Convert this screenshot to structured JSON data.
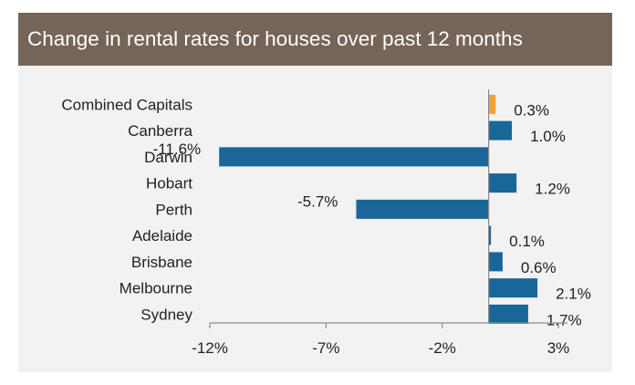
{
  "chart_data": {
    "type": "bar",
    "orientation": "horizontal",
    "title": "Change in rental rates for houses over past 12 months",
    "categories": [
      "Combined Capitals",
      "Canberra",
      "Darwin",
      "Hobart",
      "Perth",
      "Adelaide",
      "Brisbane",
      "Melbourne",
      "Sydney"
    ],
    "values": [
      0.3,
      1.0,
      -11.6,
      1.2,
      -5.7,
      0.1,
      0.6,
      2.1,
      1.7
    ],
    "value_labels": [
      "0.3%",
      "1.0%",
      "-11.6%",
      "1.2%",
      "-5.7%",
      "0.1%",
      "0.6%",
      "2.1%",
      "1.7%"
    ],
    "bar_colors": [
      "#f4a235",
      "#1a6699",
      "#1a6699",
      "#1a6699",
      "#1a6699",
      "#1a6699",
      "#1a6699",
      "#1a6699",
      "#1a6699"
    ],
    "xticks": [
      -12,
      -7,
      -2,
      3
    ],
    "xtick_labels": [
      "-12%",
      "-7%",
      "-2%",
      "3%"
    ],
    "xlim": [
      -12,
      3
    ],
    "xlabel": "",
    "ylabel": "",
    "grid": false,
    "legend": "none"
  },
  "colors": {
    "title_background": "#756458",
    "panel_background": "#f2f2f2",
    "primary_bar": "#1a6699",
    "highlight_bar": "#f4a235"
  }
}
